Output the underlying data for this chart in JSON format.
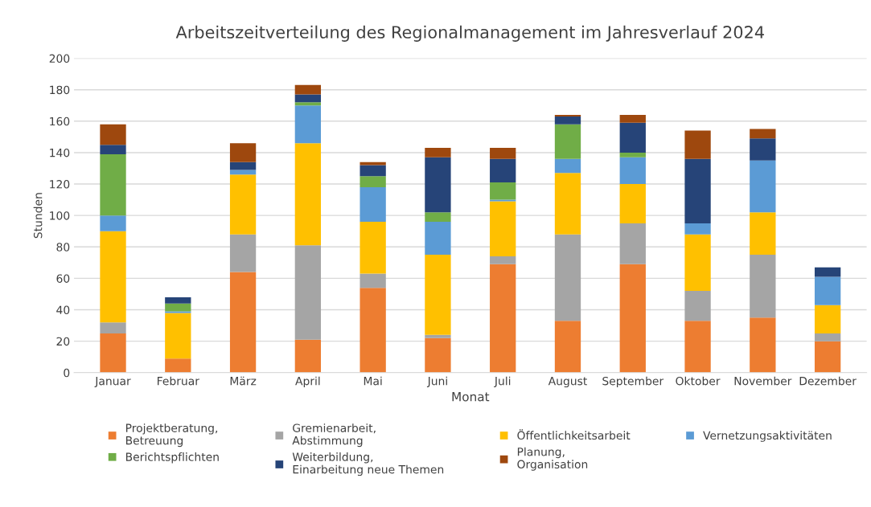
{
  "chart_data": {
    "type": "bar",
    "stacked": true,
    "title": "Arbeitszeitverteilung des Regionalmanagement im Jahresverlauf 2024",
    "xlabel": "Monat",
    "ylabel": "Stunden",
    "categories": [
      "Januar",
      "Februar",
      "März",
      "April",
      "Mai",
      "Juni",
      "Juli",
      "August",
      "September",
      "Oktober",
      "November",
      "Dezember"
    ],
    "series": [
      {
        "name": "Projektberatung,\nBetreuung",
        "color": "#ed7d31",
        "values": [
          25,
          9,
          64,
          21,
          54,
          22,
          69,
          33,
          69,
          33,
          35,
          20
        ]
      },
      {
        "name": "Gremienarbeit,\nAbstimmung",
        "color": "#a5a5a5",
        "values": [
          7,
          0,
          24,
          60,
          9,
          2,
          5,
          55,
          26,
          19,
          40,
          5
        ]
      },
      {
        "name": "Öffentlichkeitsarbeit",
        "color": "#ffc000",
        "values": [
          58,
          29,
          38,
          65,
          33,
          51,
          35,
          39,
          25,
          36,
          27,
          18
        ]
      },
      {
        "name": "Vernetzungsaktivitäten",
        "color": "#5b9bd5",
        "values": [
          10,
          1,
          3,
          24,
          22,
          21,
          1,
          9,
          17,
          7,
          33,
          18
        ]
      },
      {
        "name": "Berichtspflichten",
        "color": "#70ad47",
        "values": [
          39,
          5,
          0,
          2,
          7,
          6,
          11,
          22,
          3,
          0,
          0,
          0
        ]
      },
      {
        "name": "Weiterbildung,\nEinarbeitung neue Themen",
        "color": "#264478",
        "values": [
          6,
          4,
          5,
          5,
          7,
          35,
          15,
          5,
          19,
          41,
          14,
          6
        ]
      },
      {
        "name": "Planung,\nOrganisation",
        "color": "#9e480e",
        "values": [
          13,
          0,
          12,
          6,
          2,
          6,
          7,
          1,
          5,
          18,
          6,
          0
        ]
      }
    ],
    "ylim": [
      0,
      200
    ],
    "yticks": [
      0,
      20,
      40,
      60,
      80,
      100,
      120,
      140,
      160,
      180,
      200
    ],
    "grid": "y",
    "legend": "bottom"
  }
}
